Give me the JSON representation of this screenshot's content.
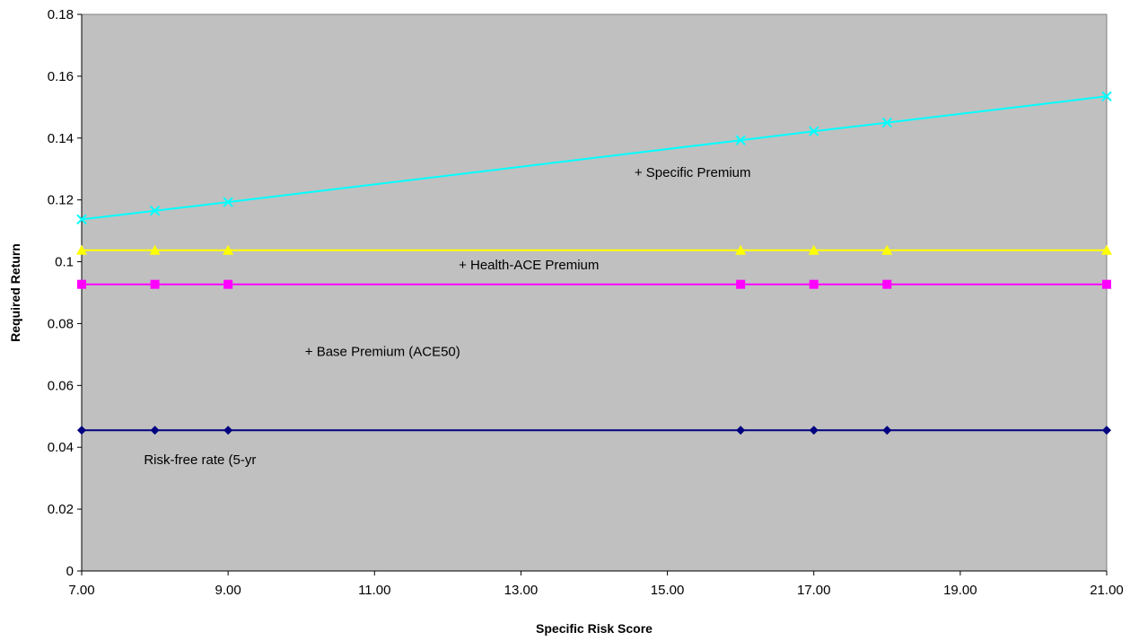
{
  "chart_data": {
    "type": "line",
    "xlabel": "Specific Risk Score",
    "ylabel": "Required Return",
    "xlim": [
      7,
      21
    ],
    "ylim": [
      0,
      0.18
    ],
    "x_ticks": [
      7,
      9,
      11,
      13,
      15,
      17,
      19,
      21
    ],
    "x_tick_labels": [
      "7.00",
      "9.00",
      "11.00",
      "13.00",
      "15.00",
      "17.00",
      "19.00",
      "21.00"
    ],
    "y_ticks": [
      0,
      0.02,
      0.04,
      0.06,
      0.08,
      0.1,
      0.12,
      0.14,
      0.16,
      0.18
    ],
    "y_tick_labels": [
      "0",
      "0.02",
      "0.04",
      "0.06",
      "0.08",
      "0.1",
      "0.12",
      "0.14",
      "0.16",
      "0.18"
    ],
    "grid": false,
    "plot_background": "#c0c0c0",
    "x": [
      7,
      8,
      9,
      16,
      17,
      18,
      21
    ],
    "series": [
      {
        "key": "risk-free",
        "color": "#000080",
        "marker": "diamond",
        "values": [
          0.0455,
          0.0455,
          0.0455,
          0.0455,
          0.0455,
          0.0455,
          0.0455
        ]
      },
      {
        "key": "base-premium",
        "color": "#ff00ff",
        "marker": "square",
        "values": [
          0.0927,
          0.0927,
          0.0927,
          0.0927,
          0.0927,
          0.0927,
          0.0927
        ]
      },
      {
        "key": "health-ace-premium",
        "color": "#ffff00",
        "marker": "triangle",
        "values": [
          0.1037,
          0.1037,
          0.1037,
          0.1037,
          0.1037,
          0.1037,
          0.1037
        ]
      },
      {
        "key": "specific-premium",
        "color": "#00ffff",
        "marker": "x",
        "values": [
          0.1137,
          0.1165,
          0.1193,
          0.1393,
          0.1422,
          0.145,
          0.1535
        ]
      }
    ],
    "annotations": [
      {
        "text": "+ Specific Premium",
        "x": 14.55,
        "y": 0.1275
      },
      {
        "text": "+ Health-ACE Premium",
        "x": 12.15,
        "y": 0.0975
      },
      {
        "text": "+ Base Premium (ACE50)",
        "x": 10.05,
        "y": 0.0695
      },
      {
        "text": "Risk-free rate (5-yr",
        "x": 7.85,
        "y": 0.0345
      }
    ]
  }
}
